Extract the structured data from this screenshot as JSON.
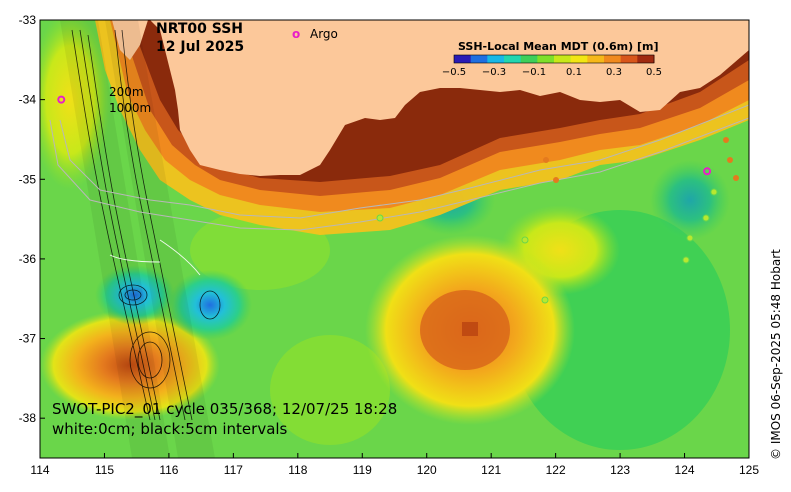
{
  "map": {
    "title_line1": "NRT00 SSH",
    "title_line2": "12 Jul 2025",
    "argo_marker": "o",
    "argo_label": "Argo",
    "isobath_label_1": "200m",
    "isobath_label_2": "1000m",
    "caption_line1": "SWOT-PIC2_01 cycle 035/368; 12/07/25 18:28",
    "caption_line2": "white:0cm; black:5cm intervals",
    "credit": "© IMOS 06-Sep-2025 05:48 Hobart",
    "x_ticks": [
      "114",
      "115",
      "116",
      "117",
      "118",
      "119",
      "120",
      "121",
      "122",
      "123",
      "124",
      "125"
    ],
    "y_ticks": [
      "-33",
      "-34",
      "-35",
      "-36",
      "-37",
      "-38"
    ],
    "lon_range": [
      114,
      125
    ],
    "lat_range": [
      -33,
      -38.5
    ]
  },
  "colorbar": {
    "title": "SSH-Local Mean MDT (0.6m) [m]",
    "ticks": [
      "−0.5",
      "−0.3",
      "−0.1",
      "0.1",
      "0.3",
      "0.5"
    ],
    "range": [
      -0.5,
      0.5
    ],
    "colors": [
      "#2a1bb5",
      "#1f6fe0",
      "#18b8e6",
      "#22d6b0",
      "#3ecf5a",
      "#7ee02a",
      "#c8e81a",
      "#f2e614",
      "#f6b81a",
      "#f08a1e",
      "#d8561a",
      "#a02a10"
    ]
  },
  "colors": {
    "land": "#fcc89a",
    "ocean_base": "#6ad64a",
    "argo": "#e81fc8"
  },
  "argo_floats": [
    {
      "lon": 114.33,
      "lat": -34.0
    },
    {
      "lon": 124.35,
      "lat": -34.9
    }
  ]
}
